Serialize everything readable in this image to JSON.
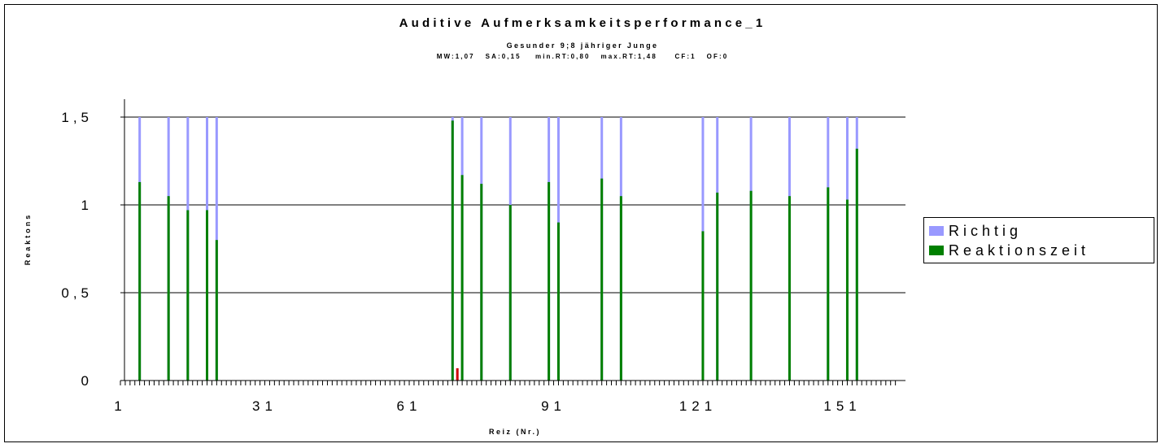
{
  "chart_data": {
    "type": "bar",
    "title": "Auditive Aufmerksamkeitsperformance_1",
    "subtitle": "Gesunder 9;8 jähriger Junge",
    "stats_line": "MW:1,07   SA:0,15    min.RT:0,80   max.RT:1,48     CF:1   OF:0",
    "xlabel": "Reiz (Nr.)",
    "ylabel": "Reaktons",
    "xlim": [
      1,
      162
    ],
    "ylim": [
      0,
      1.5
    ],
    "x_ticks": [
      "1",
      "31",
      "61",
      "91",
      "121",
      "151"
    ],
    "x_tick_values": [
      1,
      31,
      61,
      91,
      121,
      151
    ],
    "y_ticks": [
      "0",
      "0,5",
      "1",
      "1,5"
    ],
    "y_tick_values": [
      0,
      0.5,
      1,
      1.5
    ],
    "grid": true,
    "legend_position": "right",
    "series": [
      {
        "name": "Richtig",
        "color": "#9999ff",
        "x": [
          5,
          11,
          15,
          19,
          21,
          70,
          72,
          76,
          82,
          90,
          92,
          101,
          105,
          122,
          125,
          132,
          140,
          148,
          152,
          154
        ],
        "values": [
          1.5,
          1.5,
          1.5,
          1.5,
          1.5,
          1.5,
          1.5,
          1.5,
          1.5,
          1.5,
          1.5,
          1.5,
          1.5,
          1.5,
          1.5,
          1.5,
          1.5,
          1.5,
          1.5,
          1.5
        ]
      },
      {
        "name": "Reaktionszeit",
        "color": "#008000",
        "x": [
          5,
          11,
          15,
          19,
          21,
          70,
          72,
          76,
          82,
          90,
          92,
          101,
          105,
          122,
          125,
          132,
          140,
          148,
          152,
          154
        ],
        "values": [
          1.13,
          1.05,
          0.97,
          0.97,
          0.8,
          1.48,
          1.17,
          1.12,
          1.0,
          1.13,
          0.9,
          1.15,
          1.05,
          0.85,
          1.07,
          1.08,
          1.05,
          1.1,
          1.03,
          1.32
        ]
      },
      {
        "color": "#cc0000",
        "x": [
          71
        ],
        "values": [
          0.07
        ]
      }
    ]
  },
  "legend": {
    "items": [
      {
        "label": "Richtig",
        "color": "#9999ff"
      },
      {
        "label": "Reaktionszeit",
        "color": "#008000"
      }
    ]
  }
}
